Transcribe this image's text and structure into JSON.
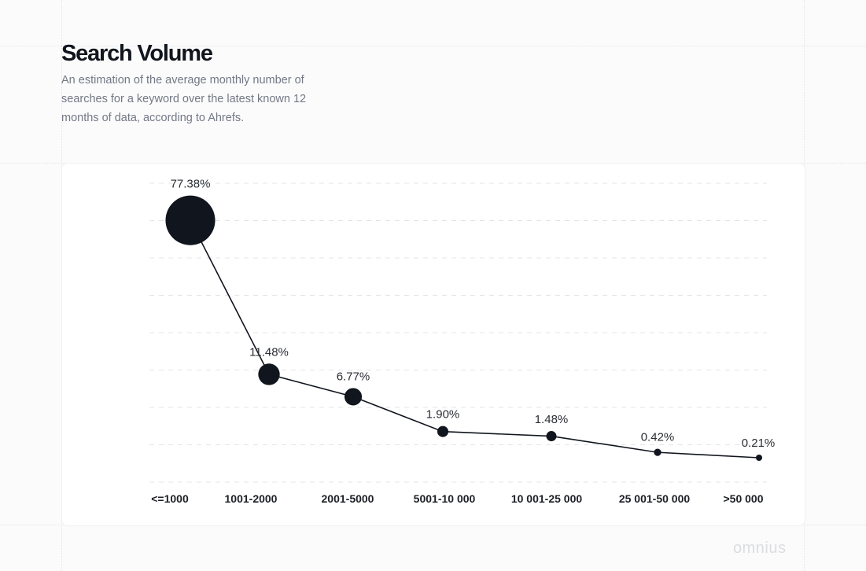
{
  "header": {
    "title": "Search Volume",
    "subtitle": "An estimation of the average monthly number of searches for a keyword over the latest known 12 months of data, according to Ahrefs."
  },
  "brand": "omnius",
  "chart_data": {
    "type": "line",
    "categories": [
      "<=1000",
      "1001-2000",
      "2001-5000",
      "5001-10 000",
      "10 001-25 000",
      "25 001-50 000",
      ">50 000"
    ],
    "values": [
      77.38,
      11.48,
      6.77,
      1.9,
      1.48,
      0.42,
      0.21
    ],
    "data_labels": [
      "77.38%",
      "11.48%",
      "6.77%",
      "1.90%",
      "1.48%",
      "0.42%",
      "0.21%"
    ],
    "marker_size_encodes_value": true,
    "grid": true,
    "colors": {
      "line": "#11151d",
      "marker": "#11151d",
      "grid": "#e3e4e7"
    }
  }
}
